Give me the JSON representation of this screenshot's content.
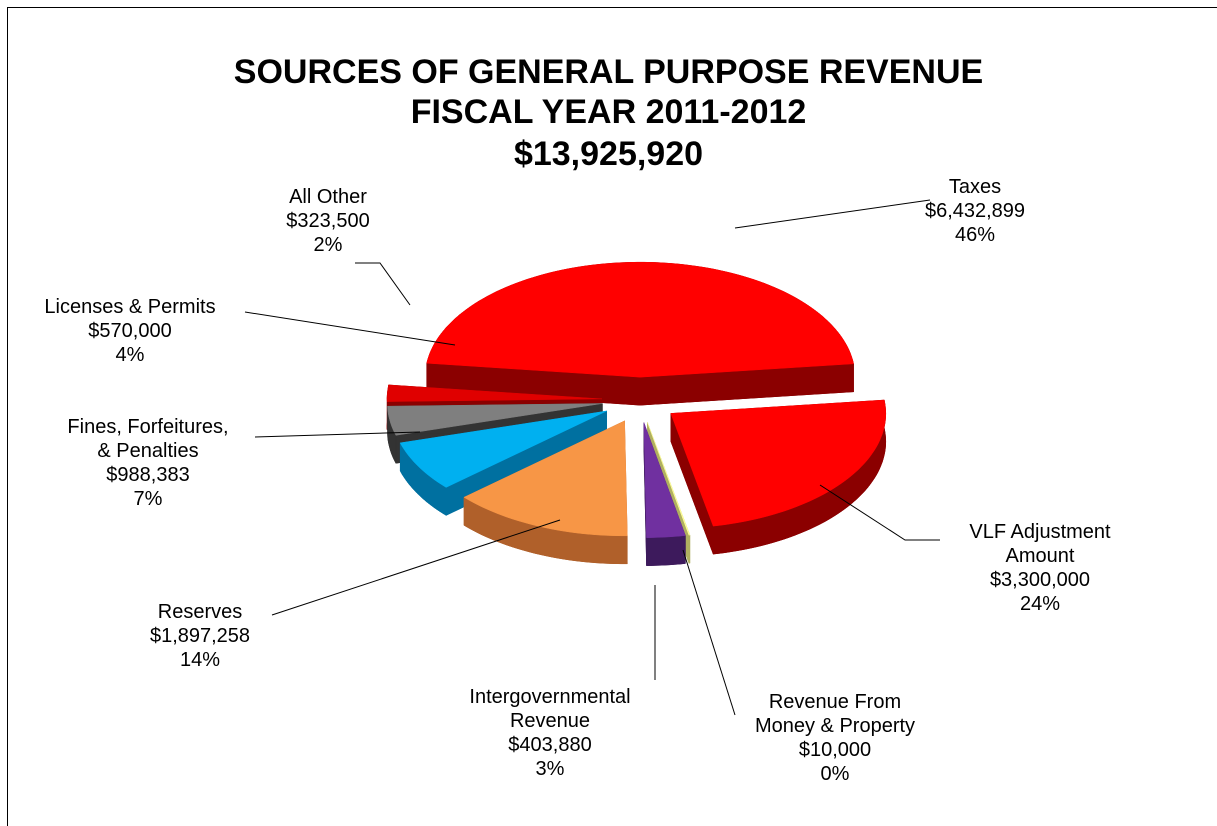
{
  "chart_data": {
    "type": "pie",
    "title": "SOURCES OF GENERAL PURPOSE REVENUE",
    "subtitle": "FISCAL YEAR 2011-2012",
    "total": {
      "value": 13925920,
      "label": "$13,925,920"
    },
    "categories": [
      "Taxes",
      "VLF Adjustment\nAmount",
      "Revenue From\nMoney & Property",
      "Intergovernmental\nRevenue",
      "Reserves",
      "Fines, Forfeitures,\n& Penalties",
      "Licenses & Permits",
      "All Other"
    ],
    "values": [
      6432899,
      3300000,
      10000,
      403880,
      1897258,
      988383,
      570000,
      323500
    ],
    "value_labels": [
      "$6,432,899",
      "$3,300,000",
      "$10,000",
      "$403,880",
      "$1,897,258",
      "$988,383",
      "$570,000",
      "$323,500"
    ],
    "percent_labels": [
      "46%",
      "24%",
      "0%",
      "3%",
      "14%",
      "7%",
      "4%",
      "2%"
    ],
    "colors": [
      "#ff0000",
      "#ff0000",
      "#ffff99",
      "#7030a0",
      "#f79646",
      "#00b0f0",
      "#7f7f7f",
      "#e00000"
    ],
    "side_colors": [
      "#8b0000",
      "#8b0000",
      "#b0b060",
      "#3d1a5c",
      "#b0602a",
      "#0070a0",
      "#333333",
      "#8b0000"
    ]
  }
}
